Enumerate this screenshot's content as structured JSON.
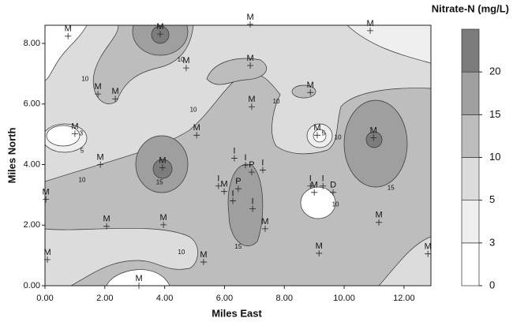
{
  "chart_data": {
    "type": "contour",
    "colorbar_title": "Nitrate-N (mg/L)",
    "xlabel": "Miles East",
    "ylabel": "Miles North",
    "xlim": [
      0,
      12.9
    ],
    "ylim": [
      0,
      8.6
    ],
    "xticks": [
      {
        "value": 0,
        "label": "0.00"
      },
      {
        "value": 2,
        "label": "2.00"
      },
      {
        "value": 4,
        "label": "4.00"
      },
      {
        "value": 6,
        "label": "6.00"
      },
      {
        "value": 8,
        "label": "8.00"
      },
      {
        "value": 10,
        "label": "10.00"
      },
      {
        "value": 12,
        "label": "12.00"
      }
    ],
    "yticks": [
      {
        "value": 0,
        "label": "0.00"
      },
      {
        "value": 2,
        "label": "2.00"
      },
      {
        "value": 4,
        "label": "4.00"
      },
      {
        "value": 6,
        "label": "6.00"
      },
      {
        "value": 8,
        "label": "8.00"
      }
    ],
    "colorbar": {
      "levels": [
        0,
        3,
        5,
        10,
        15,
        20
      ],
      "colors": [
        "#ffffff",
        "#efefef",
        "#dcdcdc",
        "#bdbdbd",
        "#9f9f9f",
        "#7c7c7c"
      ]
    },
    "wells": [
      {
        "label": "M",
        "x": 6.86,
        "y": 8.63
      },
      {
        "label": "M",
        "x": 0.77,
        "y": 8.24
      },
      {
        "label": "M",
        "x": 3.85,
        "y": 8.31
      },
      {
        "label": "M",
        "x": 10.87,
        "y": 8.42
      },
      {
        "label": "M",
        "x": 4.72,
        "y": 7.19
      },
      {
        "label": "M",
        "x": 6.86,
        "y": 7.27
      },
      {
        "label": "M",
        "x": 1.77,
        "y": 6.33
      },
      {
        "label": "M",
        "x": 2.35,
        "y": 6.17
      },
      {
        "label": "M",
        "x": 8.87,
        "y": 6.38
      },
      {
        "label": "M",
        "x": 6.91,
        "y": 5.91
      },
      {
        "label": "M",
        "x": 1.0,
        "y": 5.02
      },
      {
        "label": "M",
        "x": 5.07,
        "y": 4.97
      },
      {
        "label": "M",
        "x": 9.1,
        "y": 4.97
      },
      {
        "label": "M",
        "x": 10.98,
        "y": 4.89
      },
      {
        "label": "M",
        "x": 1.85,
        "y": 4.0
      },
      {
        "label": "M",
        "x": 3.93,
        "y": 3.9
      },
      {
        "label": "I",
        "x": 6.33,
        "y": 4.21
      },
      {
        "label": "I",
        "x": 6.7,
        "y": 3.98
      },
      {
        "label": "P",
        "x": 6.91,
        "y": 3.75
      },
      {
        "label": "I",
        "x": 7.28,
        "y": 3.82
      },
      {
        "label": "I",
        "x": 5.8,
        "y": 3.29
      },
      {
        "label": "M",
        "x": 5.99,
        "y": 3.11
      },
      {
        "label": "P",
        "x": 6.46,
        "y": 3.2
      },
      {
        "label": "I",
        "x": 6.28,
        "y": 2.8
      },
      {
        "label": "I",
        "x": 6.94,
        "y": 2.54
      },
      {
        "label": "I",
        "x": 8.87,
        "y": 3.29
      },
      {
        "label": "M",
        "x": 9.0,
        "y": 3.08
      },
      {
        "label": "I",
        "x": 9.29,
        "y": 3.29
      },
      {
        "label": "D",
        "x": 9.63,
        "y": 3.08
      },
      {
        "label": "M",
        "x": 0.03,
        "y": 2.85
      },
      {
        "label": "M",
        "x": 2.06,
        "y": 1.96
      },
      {
        "label": "M",
        "x": 3.96,
        "y": 2.01
      },
      {
        "label": "M",
        "x": 7.36,
        "y": 1.88
      },
      {
        "label": "M",
        "x": 11.16,
        "y": 2.09
      },
      {
        "label": "M",
        "x": 0.08,
        "y": 0.86
      },
      {
        "label": "M",
        "x": 5.3,
        "y": 0.78
      },
      {
        "label": "M",
        "x": 9.16,
        "y": 1.07
      },
      {
        "label": "M",
        "x": 12.8,
        "y": 1.05
      },
      {
        "label": "M",
        "x": 3.14,
        "y": 0.0
      }
    ],
    "contour_labels": [
      {
        "text": "10",
        "x": 1.34,
        "y": 6.82
      },
      {
        "text": "10",
        "x": 1.24,
        "y": 3.48
      },
      {
        "text": "10",
        "x": 4.54,
        "y": 7.45
      },
      {
        "text": "10",
        "x": 7.73,
        "y": 6.07
      },
      {
        "text": "10",
        "x": 4.96,
        "y": 5.8
      },
      {
        "text": "10",
        "x": 9.79,
        "y": 4.89
      },
      {
        "text": "10",
        "x": 4.56,
        "y": 1.1
      },
      {
        "text": "15",
        "x": 3.83,
        "y": 3.4
      },
      {
        "text": "15",
        "x": 6.46,
        "y": 1.28
      },
      {
        "text": "15",
        "x": 11.56,
        "y": 3.22
      },
      {
        "text": "3",
        "x": 1.21,
        "y": 5.02
      },
      {
        "text": "5",
        "x": 1.24,
        "y": 4.44
      },
      {
        "text": "5",
        "x": 9.31,
        "y": 5.02
      },
      {
        "text": "10",
        "x": 9.71,
        "y": 2.67
      }
    ]
  }
}
